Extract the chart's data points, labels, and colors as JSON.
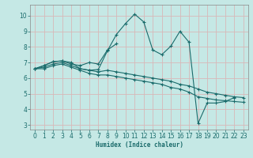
{
  "xlabel": "Humidex (Indice chaleur)",
  "xlim": [
    -0.5,
    23.5
  ],
  "ylim": [
    2.7,
    10.7
  ],
  "yticks": [
    3,
    4,
    5,
    6,
    7,
    8,
    9,
    10
  ],
  "xticks": [
    0,
    1,
    2,
    3,
    4,
    5,
    6,
    7,
    8,
    9,
    10,
    11,
    12,
    13,
    14,
    15,
    16,
    17,
    18,
    19,
    20,
    21,
    22,
    23
  ],
  "bg_color": "#c5e8e5",
  "grid_color": "#d8b8b8",
  "line_color": "#1a6b6b",
  "spine_color": "#888888",
  "lines": [
    {
      "x": [
        0,
        1,
        2,
        3,
        4,
        5,
        6,
        7,
        8,
        9,
        10,
        11,
        12,
        13,
        14,
        15,
        16,
        17,
        18,
        19,
        20,
        21,
        22
      ],
      "y": [
        6.6,
        6.8,
        7.05,
        7.1,
        7.0,
        6.6,
        6.5,
        6.55,
        7.75,
        8.8,
        9.5,
        10.1,
        9.6,
        7.8,
        7.5,
        8.05,
        9.0,
        8.3,
        3.1,
        4.4,
        4.4,
        4.5,
        4.75
      ]
    },
    {
      "x": [
        0,
        1,
        2,
        3,
        4,
        5,
        6,
        7,
        8,
        9
      ],
      "y": [
        6.6,
        6.8,
        7.05,
        7.1,
        6.9,
        6.8,
        7.0,
        6.9,
        7.8,
        8.2
      ]
    },
    {
      "x": [
        0,
        1,
        2,
        3,
        4,
        5,
        6,
        7,
        8,
        9,
        10,
        11,
        12,
        13,
        14,
        15,
        16,
        17,
        18,
        19,
        20,
        21,
        22,
        23
      ],
      "y": [
        6.6,
        6.7,
        6.9,
        7.0,
        6.8,
        6.6,
        6.5,
        6.4,
        6.5,
        6.4,
        6.3,
        6.2,
        6.1,
        6.0,
        5.9,
        5.8,
        5.6,
        5.5,
        5.3,
        5.1,
        5.0,
        4.9,
        4.8,
        4.75
      ]
    },
    {
      "x": [
        0,
        1,
        2,
        3,
        4,
        5,
        6,
        7,
        8,
        9,
        10,
        11,
        12,
        13,
        14,
        15,
        16,
        17,
        18,
        19,
        20,
        21,
        22,
        23
      ],
      "y": [
        6.6,
        6.6,
        6.8,
        6.9,
        6.7,
        6.5,
        6.3,
        6.2,
        6.2,
        6.1,
        6.0,
        5.9,
        5.8,
        5.7,
        5.6,
        5.4,
        5.3,
        5.1,
        4.8,
        4.7,
        4.6,
        4.55,
        4.5,
        4.45
      ]
    }
  ]
}
